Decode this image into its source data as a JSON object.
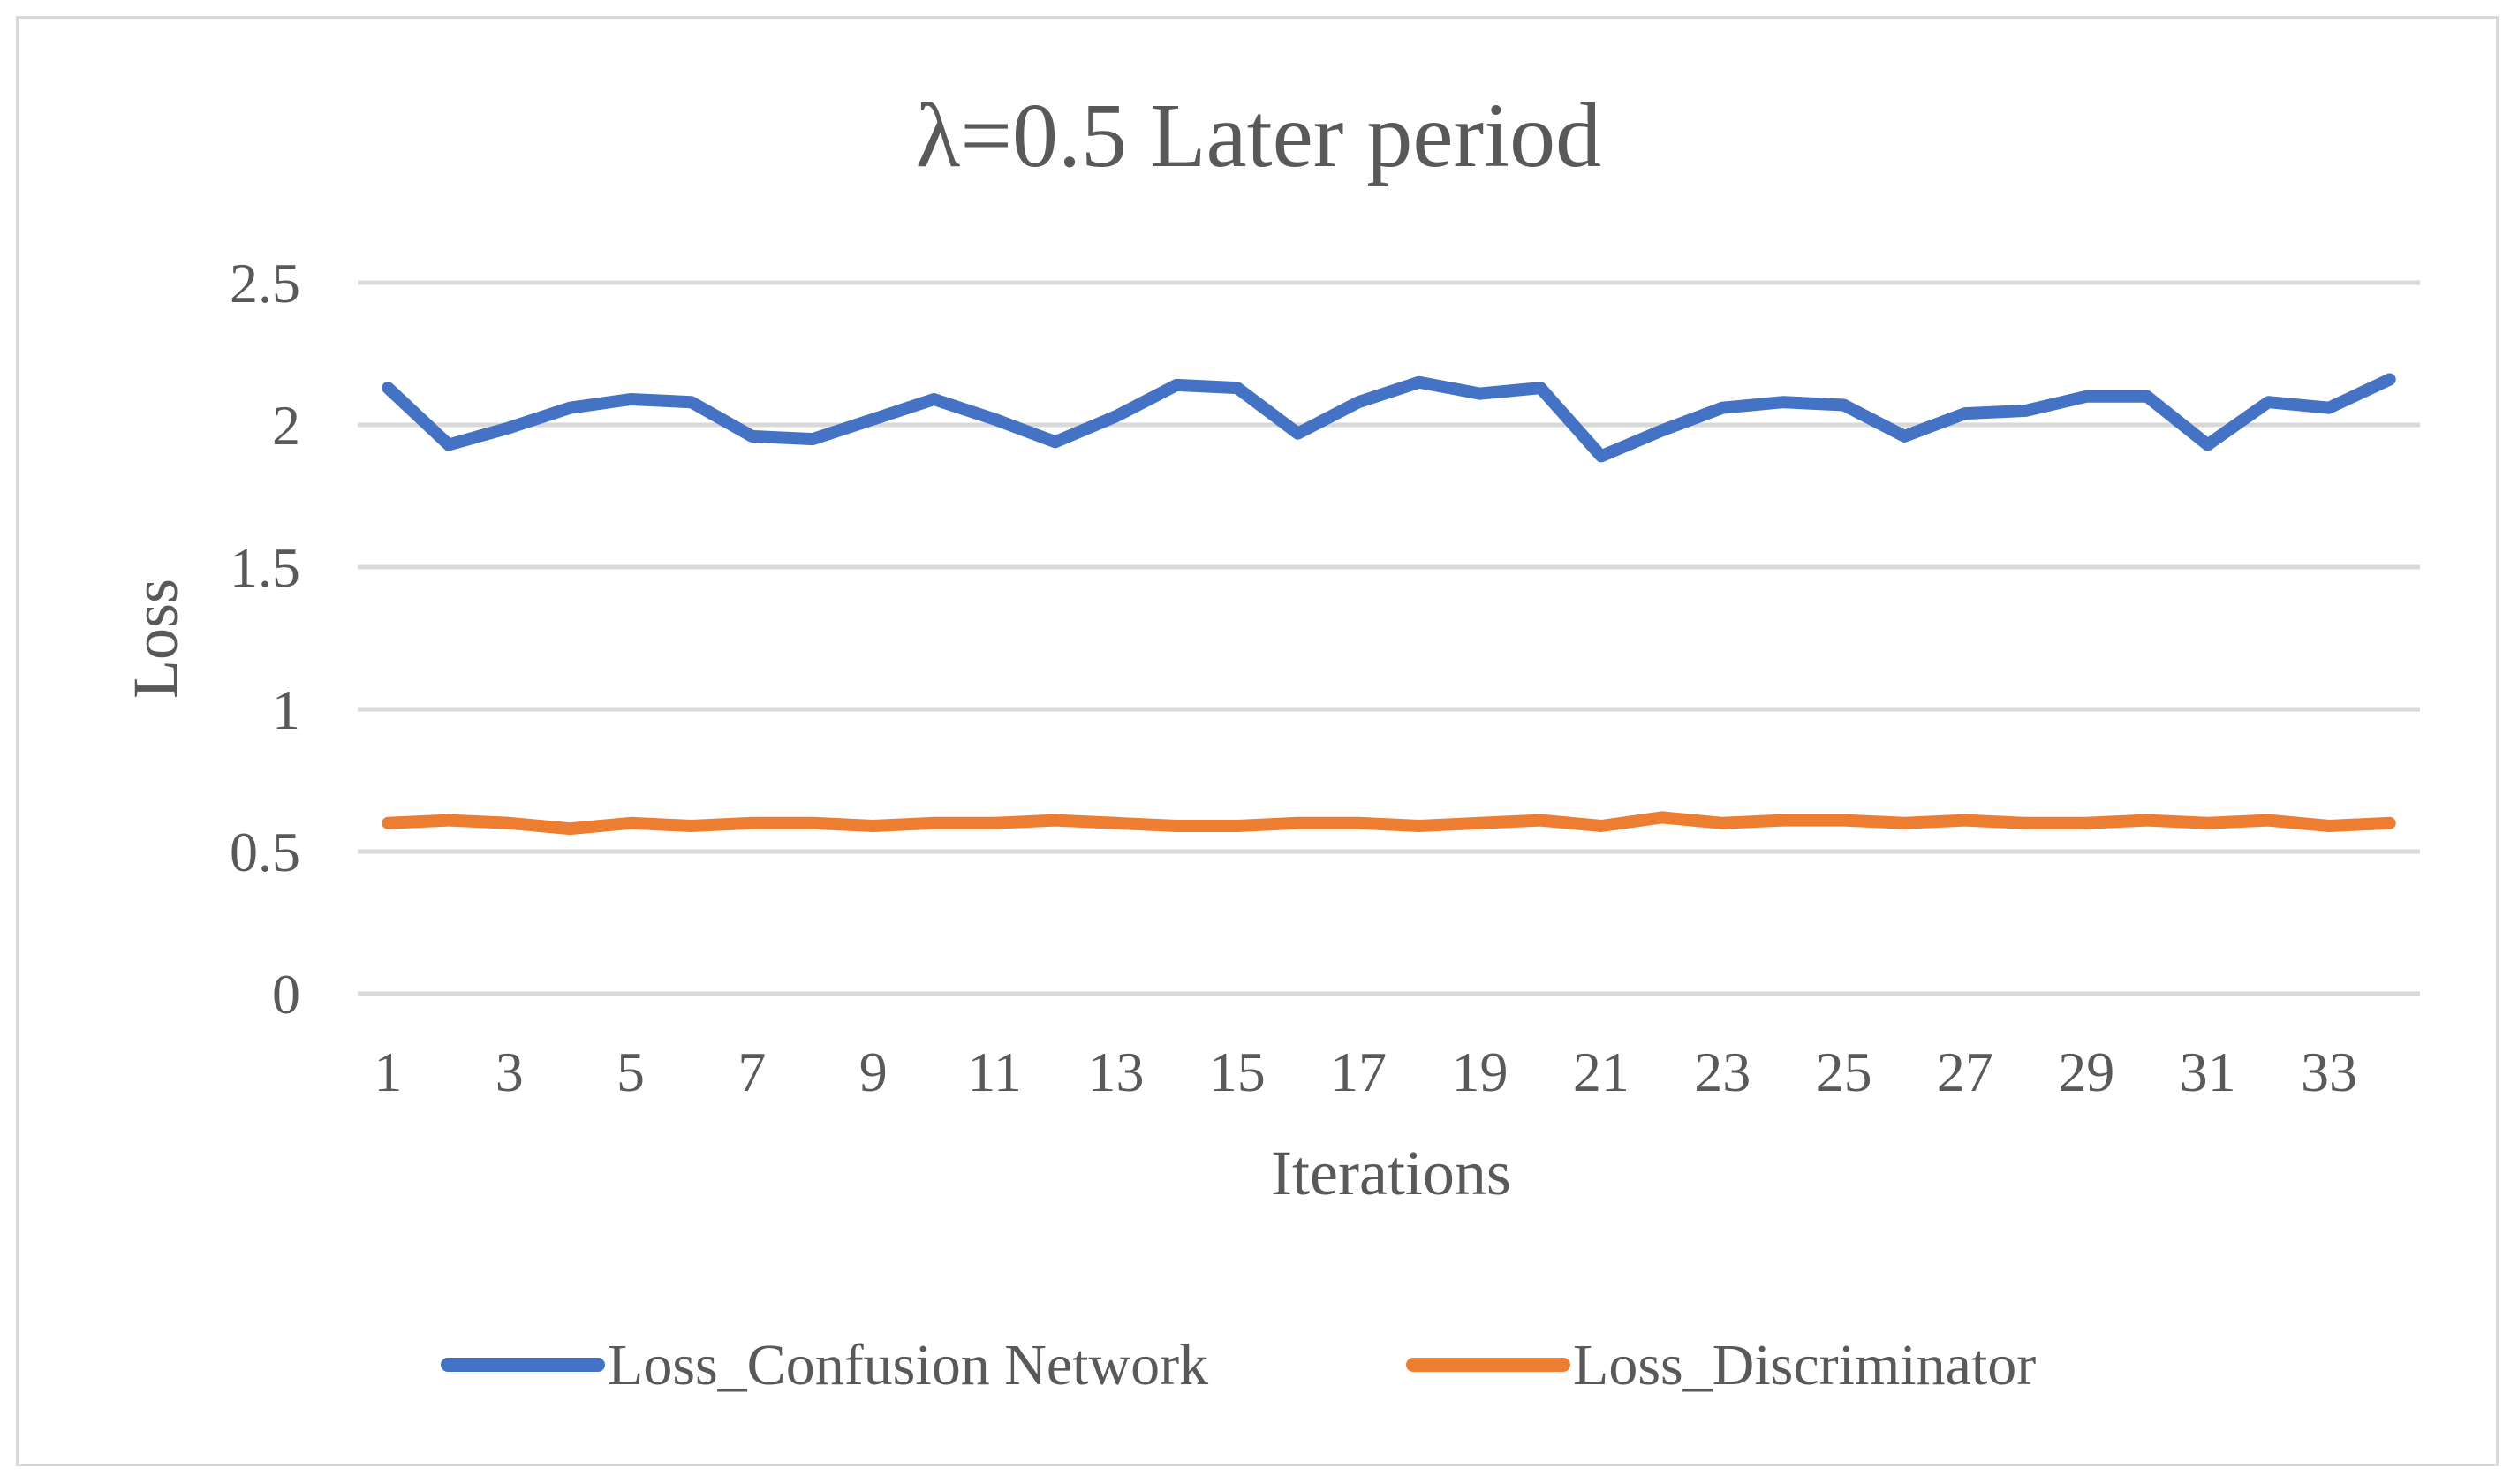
{
  "chart_data": {
    "type": "line",
    "title": "λ=0.5  Later period",
    "xlabel": "Iterations",
    "ylabel": "Loss",
    "ylim": [
      0,
      2.5
    ],
    "yticks": [
      "0",
      "0.5",
      "1",
      "1.5",
      "2",
      "2.5"
    ],
    "x": [
      1,
      2,
      3,
      4,
      5,
      6,
      7,
      8,
      9,
      10,
      11,
      12,
      13,
      14,
      15,
      16,
      17,
      18,
      19,
      20,
      21,
      22,
      23,
      24,
      25,
      26,
      27,
      28,
      29,
      30,
      31,
      32,
      33,
      34
    ],
    "xtick_labels": [
      "1",
      "3",
      "5",
      "7",
      "9",
      "11",
      "13",
      "15",
      "17",
      "19",
      "21",
      "23",
      "25",
      "27",
      "29",
      "31",
      "33"
    ],
    "grid": "horizontal",
    "legend_position": "bottom",
    "series": [
      {
        "name": "Loss_Confusion Network",
        "color": "#4472C4",
        "values": [
          2.13,
          1.93,
          1.99,
          2.06,
          2.09,
          2.08,
          1.96,
          1.95,
          2.02,
          2.09,
          2.02,
          1.94,
          2.03,
          2.14,
          2.13,
          1.97,
          2.08,
          2.15,
          2.11,
          2.13,
          1.89,
          1.98,
          2.06,
          2.08,
          2.07,
          1.96,
          2.04,
          2.05,
          2.1,
          2.1,
          1.93,
          2.08,
          2.06,
          2.16
        ]
      },
      {
        "name": "Loss_Discriminator",
        "color": "#ED7D31",
        "values": [
          0.6,
          0.61,
          0.6,
          0.58,
          0.6,
          0.59,
          0.6,
          0.6,
          0.59,
          0.6,
          0.6,
          0.61,
          0.6,
          0.59,
          0.59,
          0.6,
          0.6,
          0.59,
          0.6,
          0.61,
          0.59,
          0.62,
          0.6,
          0.61,
          0.61,
          0.6,
          0.61,
          0.6,
          0.6,
          0.61,
          0.6,
          0.61,
          0.59,
          0.6
        ]
      }
    ]
  }
}
